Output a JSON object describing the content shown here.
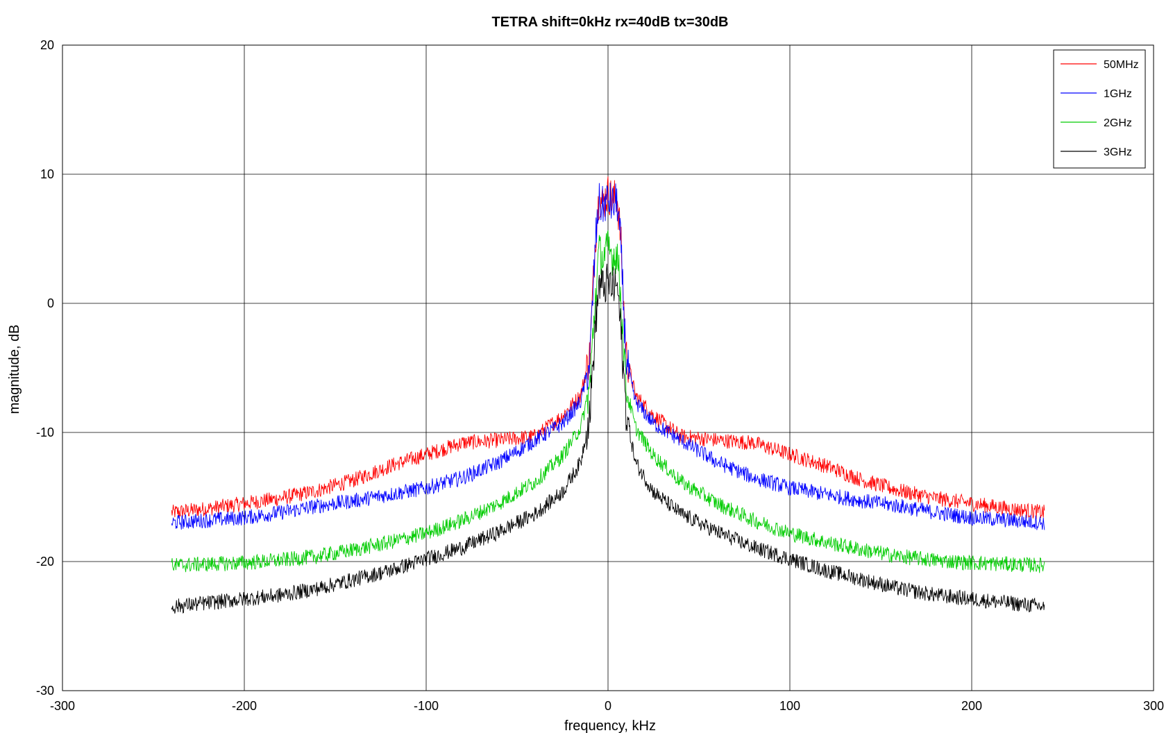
{
  "chart_data": {
    "type": "line",
    "title": "TETRA shift=0kHz rx=40dB tx=30dB",
    "xlabel": "frequency, kHz",
    "ylabel": "magnitude, dB",
    "xlim": [
      -300,
      300
    ],
    "ylim": [
      -30,
      20
    ],
    "xticks": [
      -300,
      -200,
      -100,
      0,
      100,
      200,
      300
    ],
    "xtick_labels": [
      "-300",
      "-200",
      "-100",
      "0",
      "100",
      "200",
      "300"
    ],
    "yticks": [
      -30,
      -20,
      -10,
      0,
      10,
      20
    ],
    "ytick_labels": [
      "-30",
      "-20",
      "-10",
      "0",
      "10",
      "20"
    ],
    "grid": true,
    "legend_position": "top-right",
    "x": [
      -240,
      -220,
      -200,
      -180,
      -160,
      -140,
      -120,
      -100,
      -80,
      -60,
      -40,
      -25,
      -15,
      -10,
      -7,
      -5,
      -3,
      0,
      3,
      5,
      7,
      10,
      15,
      25,
      40,
      60,
      80,
      100,
      120,
      140,
      160,
      180,
      200,
      220,
      240
    ],
    "series": [
      {
        "name": "50MHz",
        "color": "#ff0000",
        "values": [
          -16.2,
          -15.9,
          -15.5,
          -15.1,
          -14.5,
          -13.7,
          -12.6,
          -11.7,
          -10.8,
          -10.6,
          -10.3,
          -8.7,
          -7.1,
          -4.0,
          5.0,
          8.2,
          7.8,
          8.5,
          8.0,
          8.3,
          5.0,
          -4.0,
          -7.1,
          -8.7,
          -10.3,
          -10.6,
          -10.8,
          -11.7,
          -12.6,
          -13.7,
          -14.5,
          -15.1,
          -15.5,
          -15.9,
          -16.2
        ]
      },
      {
        "name": "1GHz",
        "color": "#0000ff",
        "values": [
          -17.0,
          -16.8,
          -16.6,
          -16.2,
          -15.7,
          -15.3,
          -14.8,
          -14.3,
          -13.5,
          -12.3,
          -10.6,
          -9.3,
          -7.6,
          -4.5,
          4.5,
          7.8,
          7.5,
          8.0,
          7.6,
          7.9,
          4.5,
          -4.5,
          -7.6,
          -9.3,
          -10.6,
          -12.3,
          -13.5,
          -14.3,
          -14.8,
          -15.3,
          -15.7,
          -16.2,
          -16.6,
          -16.8,
          -17.0
        ]
      },
      {
        "name": "2GHz",
        "color": "#00cc00",
        "values": [
          -20.3,
          -20.2,
          -20.1,
          -19.9,
          -19.6,
          -19.1,
          -18.5,
          -17.8,
          -16.8,
          -15.5,
          -13.8,
          -11.8,
          -9.6,
          -6.5,
          0.5,
          4.0,
          3.5,
          4.2,
          3.6,
          4.0,
          0.5,
          -6.5,
          -9.6,
          -11.8,
          -13.8,
          -15.5,
          -16.8,
          -17.8,
          -18.5,
          -19.1,
          -19.6,
          -19.9,
          -20.1,
          -20.2,
          -20.3
        ]
      },
      {
        "name": "3GHz",
        "color": "#000000",
        "values": [
          -23.5,
          -23.2,
          -22.9,
          -22.6,
          -22.1,
          -21.4,
          -20.7,
          -19.8,
          -18.9,
          -17.7,
          -16.3,
          -14.6,
          -12.3,
          -8.5,
          -2.0,
          1.5,
          1.2,
          1.6,
          1.2,
          1.5,
          -2.0,
          -8.5,
          -12.3,
          -14.6,
          -16.3,
          -17.7,
          -18.9,
          -19.8,
          -20.7,
          -21.4,
          -22.1,
          -22.6,
          -22.9,
          -23.2,
          -23.5
        ]
      }
    ]
  }
}
